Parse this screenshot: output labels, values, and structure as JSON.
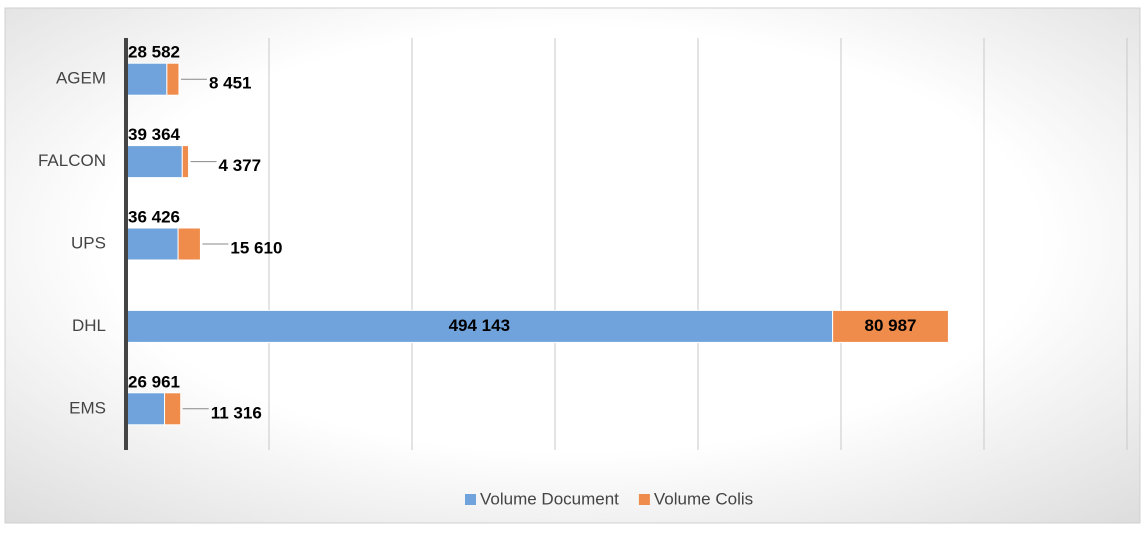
{
  "chart_data": {
    "type": "stacked-barh",
    "categories": [
      "AGEM",
      "FALCON",
      "UPS",
      "DHL",
      "EMS"
    ],
    "series": [
      {
        "name": "Volume Document",
        "color": "#70a3db",
        "values": [
          28582,
          39364,
          36426,
          494143,
          26961
        ],
        "value_labels": [
          "28 582",
          "39 364",
          "36 426",
          "494 143",
          "26 961"
        ]
      },
      {
        "name": "Volume Colis",
        "color": "#ef8b4b",
        "values": [
          8451,
          4377,
          15610,
          80987,
          11316
        ],
        "value_labels": [
          "8 451",
          "4 377",
          "15 610",
          "80 987",
          "11 316"
        ]
      }
    ],
    "xlim": [
      0,
      700000
    ],
    "xticks": [
      0,
      100000,
      200000,
      300000,
      400000,
      500000,
      600000,
      700000
    ],
    "grid": true,
    "legend": "bottom"
  }
}
